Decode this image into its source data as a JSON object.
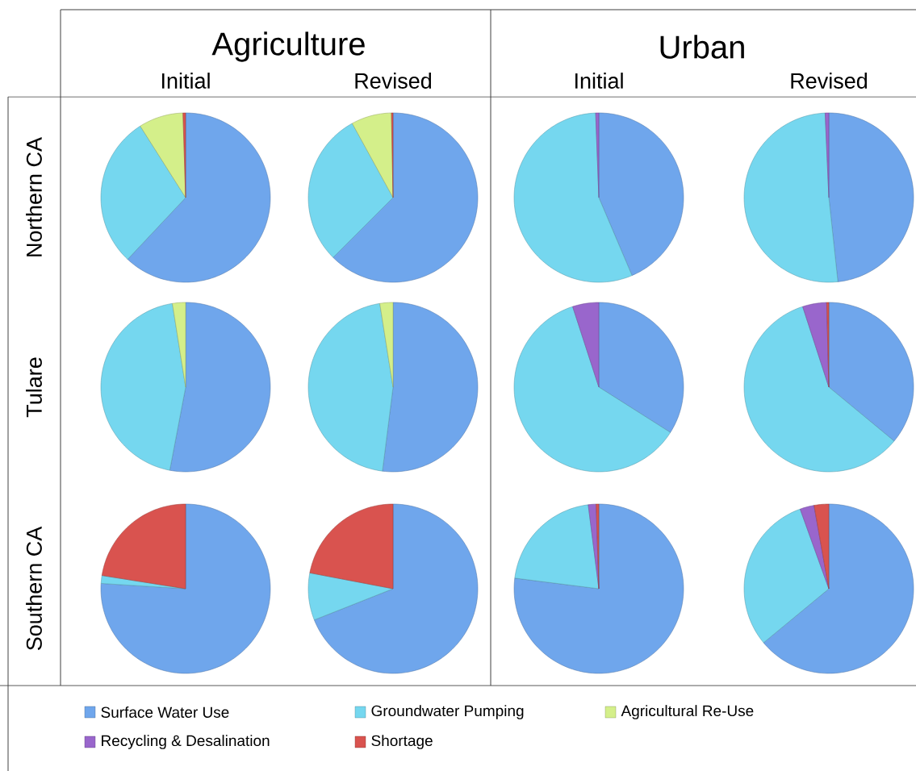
{
  "chart_data": [
    {
      "type": "pie",
      "title": "Initial",
      "annotations": [
        "Agriculture"
      ],
      "ylabel": "Northern CA",
      "legend": "bottom",
      "categories": [
        "Surface Water Use",
        "Groundwater Pumping",
        "Agricultural Re-Use",
        "Recycling & Desalination",
        "Shortage"
      ],
      "values": [
        62,
        29,
        8.5,
        0,
        0.5
      ],
      "colors": [
        "#6fa6ec",
        "#75d7ef",
        "#d4ef8a",
        "#9966cc",
        "#d9534f"
      ]
    },
    {
      "type": "pie",
      "title": "Revised",
      "categories": [
        null,
        null,
        null,
        null,
        null
      ],
      "values": [
        62.5,
        29.5,
        7.7,
        0,
        0.3
      ],
      "colors": [
        "#6fa6ec",
        "#75d7ef",
        "#d4ef8a",
        "#9966cc",
        "#d9534f"
      ]
    },
    {
      "type": "pie",
      "title": "Initial",
      "annotations": [
        "Urban"
      ],
      "categories": [
        null,
        null,
        null,
        null,
        null
      ],
      "values": [
        43.6,
        55.8,
        0,
        0.6,
        0
      ],
      "colors": [
        "#6fa6ec",
        "#75d7ef",
        "#d4ef8a",
        "#9966cc",
        "#d9534f"
      ]
    },
    {
      "type": "pie",
      "title": "Revised",
      "categories": [
        null,
        null,
        null,
        null,
        null
      ],
      "values": [
        48.3,
        51,
        0,
        0.7,
        0
      ],
      "colors": [
        "#6fa6ec",
        "#75d7ef",
        "#d4ef8a",
        "#9966cc",
        "#d9534f"
      ]
    },
    {
      "type": "pie",
      "ylabel": "Tulare",
      "categories": [
        null,
        null,
        null,
        null,
        null
      ],
      "values": [
        53,
        44.5,
        2.5,
        0,
        0
      ],
      "colors": [
        "#6fa6ec",
        "#75d7ef",
        "#d4ef8a",
        "#9966cc",
        "#d9534f"
      ]
    },
    {
      "type": "pie",
      "categories": [
        null,
        null,
        null,
        null,
        null
      ],
      "values": [
        52,
        45.5,
        2.5,
        0,
        0
      ],
      "colors": [
        "#6fa6ec",
        "#75d7ef",
        "#d4ef8a",
        "#9966cc",
        "#d9534f"
      ]
    },
    {
      "type": "pie",
      "categories": [
        null,
        null,
        null,
        null,
        null
      ],
      "values": [
        34,
        61,
        0,
        5,
        0
      ],
      "colors": [
        "#6fa6ec",
        "#75d7ef",
        "#d4ef8a",
        "#9966cc",
        "#d9534f"
      ]
    },
    {
      "type": "pie",
      "categories": [
        null,
        null,
        null,
        null,
        null
      ],
      "values": [
        36,
        59,
        0,
        4.6,
        0.4
      ],
      "colors": [
        "#6fa6ec",
        "#75d7ef",
        "#d4ef8a",
        "#9966cc",
        "#d9534f"
      ]
    },
    {
      "type": "pie",
      "ylabel": "Southern CA",
      "categories": [
        null,
        null,
        null,
        null,
        null
      ],
      "values": [
        76,
        1.5,
        0,
        0,
        22.5
      ],
      "colors": [
        "#6fa6ec",
        "#75d7ef",
        "#d4ef8a",
        "#9966cc",
        "#d9534f"
      ]
    },
    {
      "type": "pie",
      "categories": [
        null,
        null,
        null,
        null,
        null
      ],
      "values": [
        69,
        9,
        0,
        0,
        22
      ],
      "colors": [
        "#6fa6ec",
        "#75d7ef",
        "#d4ef8a",
        "#9966cc",
        "#d9534f"
      ]
    },
    {
      "type": "pie",
      "categories": [
        null,
        null,
        null,
        null,
        null
      ],
      "values": [
        77,
        21,
        0,
        1.5,
        0.5
      ],
      "colors": [
        "#6fa6ec",
        "#75d7ef",
        "#d4ef8a",
        "#9966cc",
        "#d9534f"
      ]
    },
    {
      "type": "pie",
      "categories": [
        null,
        null,
        null,
        null,
        null
      ],
      "values": [
        64,
        30.5,
        0,
        2.7,
        2.8
      ],
      "colors": [
        "#6fa6ec",
        "#75d7ef",
        "#d4ef8a",
        "#9966cc",
        "#d9534f"
      ]
    }
  ]
}
